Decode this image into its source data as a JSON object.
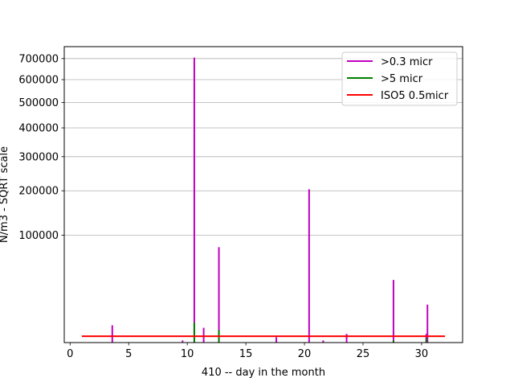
{
  "chart_data": {
    "type": "line",
    "title": "",
    "xlabel": "410 -- day in the month",
    "ylabel": "N/m3 - SQRT scale",
    "y_scale": "sqrt",
    "xlim": [
      -0.5,
      33.5
    ],
    "ylim": [
      0,
      760000
    ],
    "x_ticks": [
      0,
      5,
      10,
      15,
      20,
      25,
      30
    ],
    "x_tick_labels": [
      "0",
      "5",
      "10",
      "15",
      "20",
      "25",
      "30"
    ],
    "y_ticks": [
      100000,
      200000,
      300000,
      400000,
      500000,
      600000,
      700000
    ],
    "y_tick_labels": [
      "100000",
      "200000",
      "300000",
      "400000",
      "500000",
      "600000",
      "700000"
    ],
    "grid": "y",
    "legend": "top-right",
    "series": [
      {
        "name": ">0.3 micr",
        "color": "#bf00bf",
        "spikes": [
          {
            "x": 3.6,
            "y": 2600
          },
          {
            "x": 9.6,
            "y": 40
          },
          {
            "x": 10.6,
            "y": 705000
          },
          {
            "x": 11.4,
            "y": 1900
          },
          {
            "x": 12.7,
            "y": 79000
          },
          {
            "x": 17.6,
            "y": 250
          },
          {
            "x": 20.4,
            "y": 204000
          },
          {
            "x": 21.6,
            "y": 40
          },
          {
            "x": 23.6,
            "y": 650
          },
          {
            "x": 27.6,
            "y": 34000
          },
          {
            "x": 30.4,
            "y": 650
          },
          {
            "x": 30.5,
            "y": 12500
          }
        ]
      },
      {
        "name": ">5 micr",
        "color": "#008000",
        "spikes": [
          {
            "x": 10.6,
            "y": 3500
          },
          {
            "x": 12.7,
            "y": 1400
          },
          {
            "x": 27.6,
            "y": 40
          },
          {
            "x": 30.4,
            "y": 180
          }
        ]
      },
      {
        "name": "ISO5 0.5micr",
        "color": "#ff0000",
        "line": {
          "x": [
            1,
            32
          ],
          "y": [
            352,
            352
          ]
        }
      }
    ]
  }
}
